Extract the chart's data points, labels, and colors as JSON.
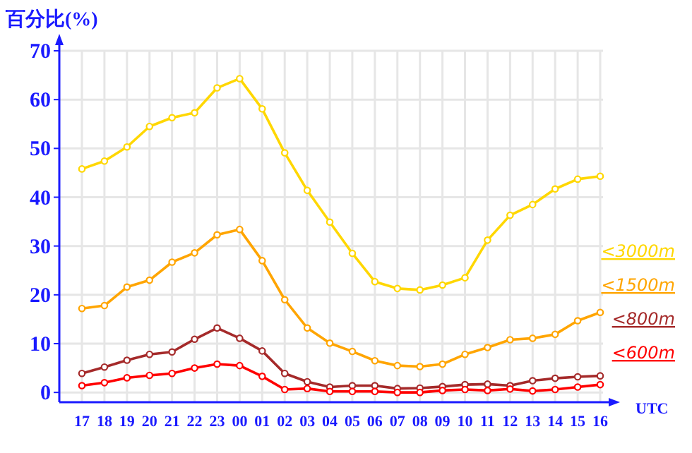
{
  "chart_data": {
    "type": "line",
    "ylabel": "百分比(%)",
    "xlabel": "UTC",
    "categories": [
      "17",
      "18",
      "19",
      "20",
      "21",
      "22",
      "23",
      "00",
      "01",
      "02",
      "03",
      "04",
      "05",
      "06",
      "07",
      "08",
      "09",
      "10",
      "11",
      "12",
      "13",
      "14",
      "15",
      "16"
    ],
    "ylim": [
      -2,
      70
    ],
    "yticks": [
      0,
      10,
      20,
      30,
      40,
      50,
      60,
      70
    ],
    "grid": true,
    "legend": "right",
    "marker": "circle",
    "line_style": "solid",
    "series": [
      {
        "name": "<3000m",
        "color": "#ffd700",
        "values": [
          45.8,
          47.4,
          50.3,
          54.5,
          56.3,
          57.3,
          62.4,
          64.3,
          58.1,
          49.1,
          41.4,
          34.9,
          28.5,
          22.7,
          21.3,
          21.0,
          22.0,
          23.5,
          31.2,
          36.3,
          38.5,
          41.7,
          43.7,
          44.3
        ]
      },
      {
        "name": "<1500m",
        "color": "#ffa500",
        "values": [
          17.2,
          17.8,
          21.6,
          23.0,
          26.7,
          28.6,
          32.3,
          33.4,
          27.0,
          19.0,
          13.2,
          10.1,
          8.4,
          6.5,
          5.5,
          5.3,
          5.8,
          7.8,
          9.2,
          10.8,
          11.1,
          11.9,
          14.7,
          16.4
        ]
      },
      {
        "name": "<800m",
        "color": "#a52a2a",
        "values": [
          3.9,
          5.2,
          6.6,
          7.8,
          8.3,
          10.9,
          13.2,
          11.1,
          8.5,
          3.9,
          2.2,
          1.1,
          1.4,
          1.4,
          0.8,
          0.9,
          1.2,
          1.6,
          1.7,
          1.4,
          2.4,
          2.9,
          3.2,
          3.4
        ]
      },
      {
        "name": "<600m",
        "color": "#ff0000",
        "values": [
          1.4,
          2.0,
          3.0,
          3.5,
          3.9,
          5.0,
          5.8,
          5.5,
          3.3,
          0.6,
          0.8,
          0.2,
          0.2,
          0.2,
          0,
          0,
          0.4,
          0.6,
          0.4,
          0.7,
          0.3,
          0.6,
          1.1,
          1.6
        ]
      }
    ]
  }
}
